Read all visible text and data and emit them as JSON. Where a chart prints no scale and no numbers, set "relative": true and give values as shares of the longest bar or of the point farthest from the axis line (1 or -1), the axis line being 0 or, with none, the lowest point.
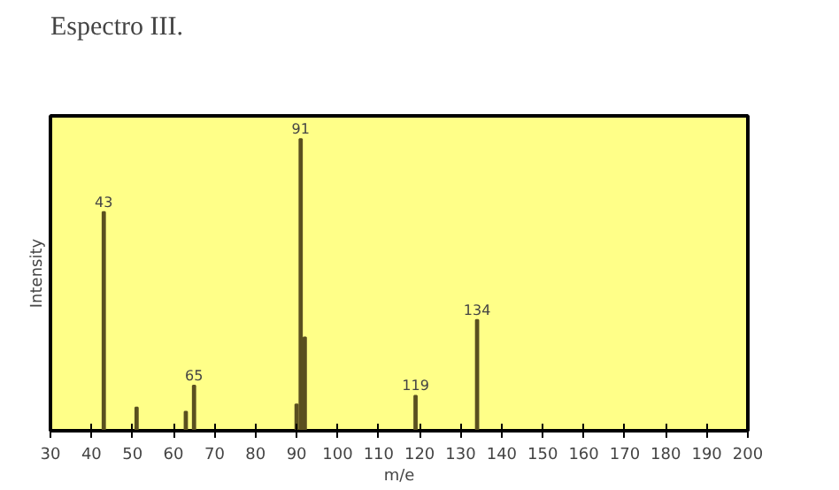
{
  "chart_data": {
    "type": "bar",
    "title": "Espectro III.",
    "xlabel": "m/e",
    "ylabel": "Intensity",
    "relative": true,
    "tick_labels": "x",
    "grid": false,
    "x": [
      43,
      51,
      63,
      65,
      90,
      91,
      92,
      119,
      134
    ],
    "series": [
      {
        "color": "#5a5020",
        "values": [
          0.75,
          0.08,
          0.065,
          0.155,
          0.09,
          1.0,
          0.32,
          0.12,
          0.38
        ]
      }
    ],
    "xlim": [
      30,
      200
    ],
    "xticks": [
      30,
      40,
      50,
      60,
      70,
      80,
      90,
      100,
      110,
      120,
      130,
      140,
      150,
      160,
      170,
      180,
      190,
      200
    ],
    "annotations": [
      {
        "text": "43",
        "x": 43,
        "y": 0.75
      },
      {
        "text": "91",
        "x": 91,
        "y": 1.0
      },
      {
        "text": "65",
        "x": 65,
        "y": 0.155
      },
      {
        "text": "119",
        "x": 119,
        "y": 0.12
      },
      {
        "text": "134",
        "x": 134,
        "y": 0.38
      }
    ]
  }
}
